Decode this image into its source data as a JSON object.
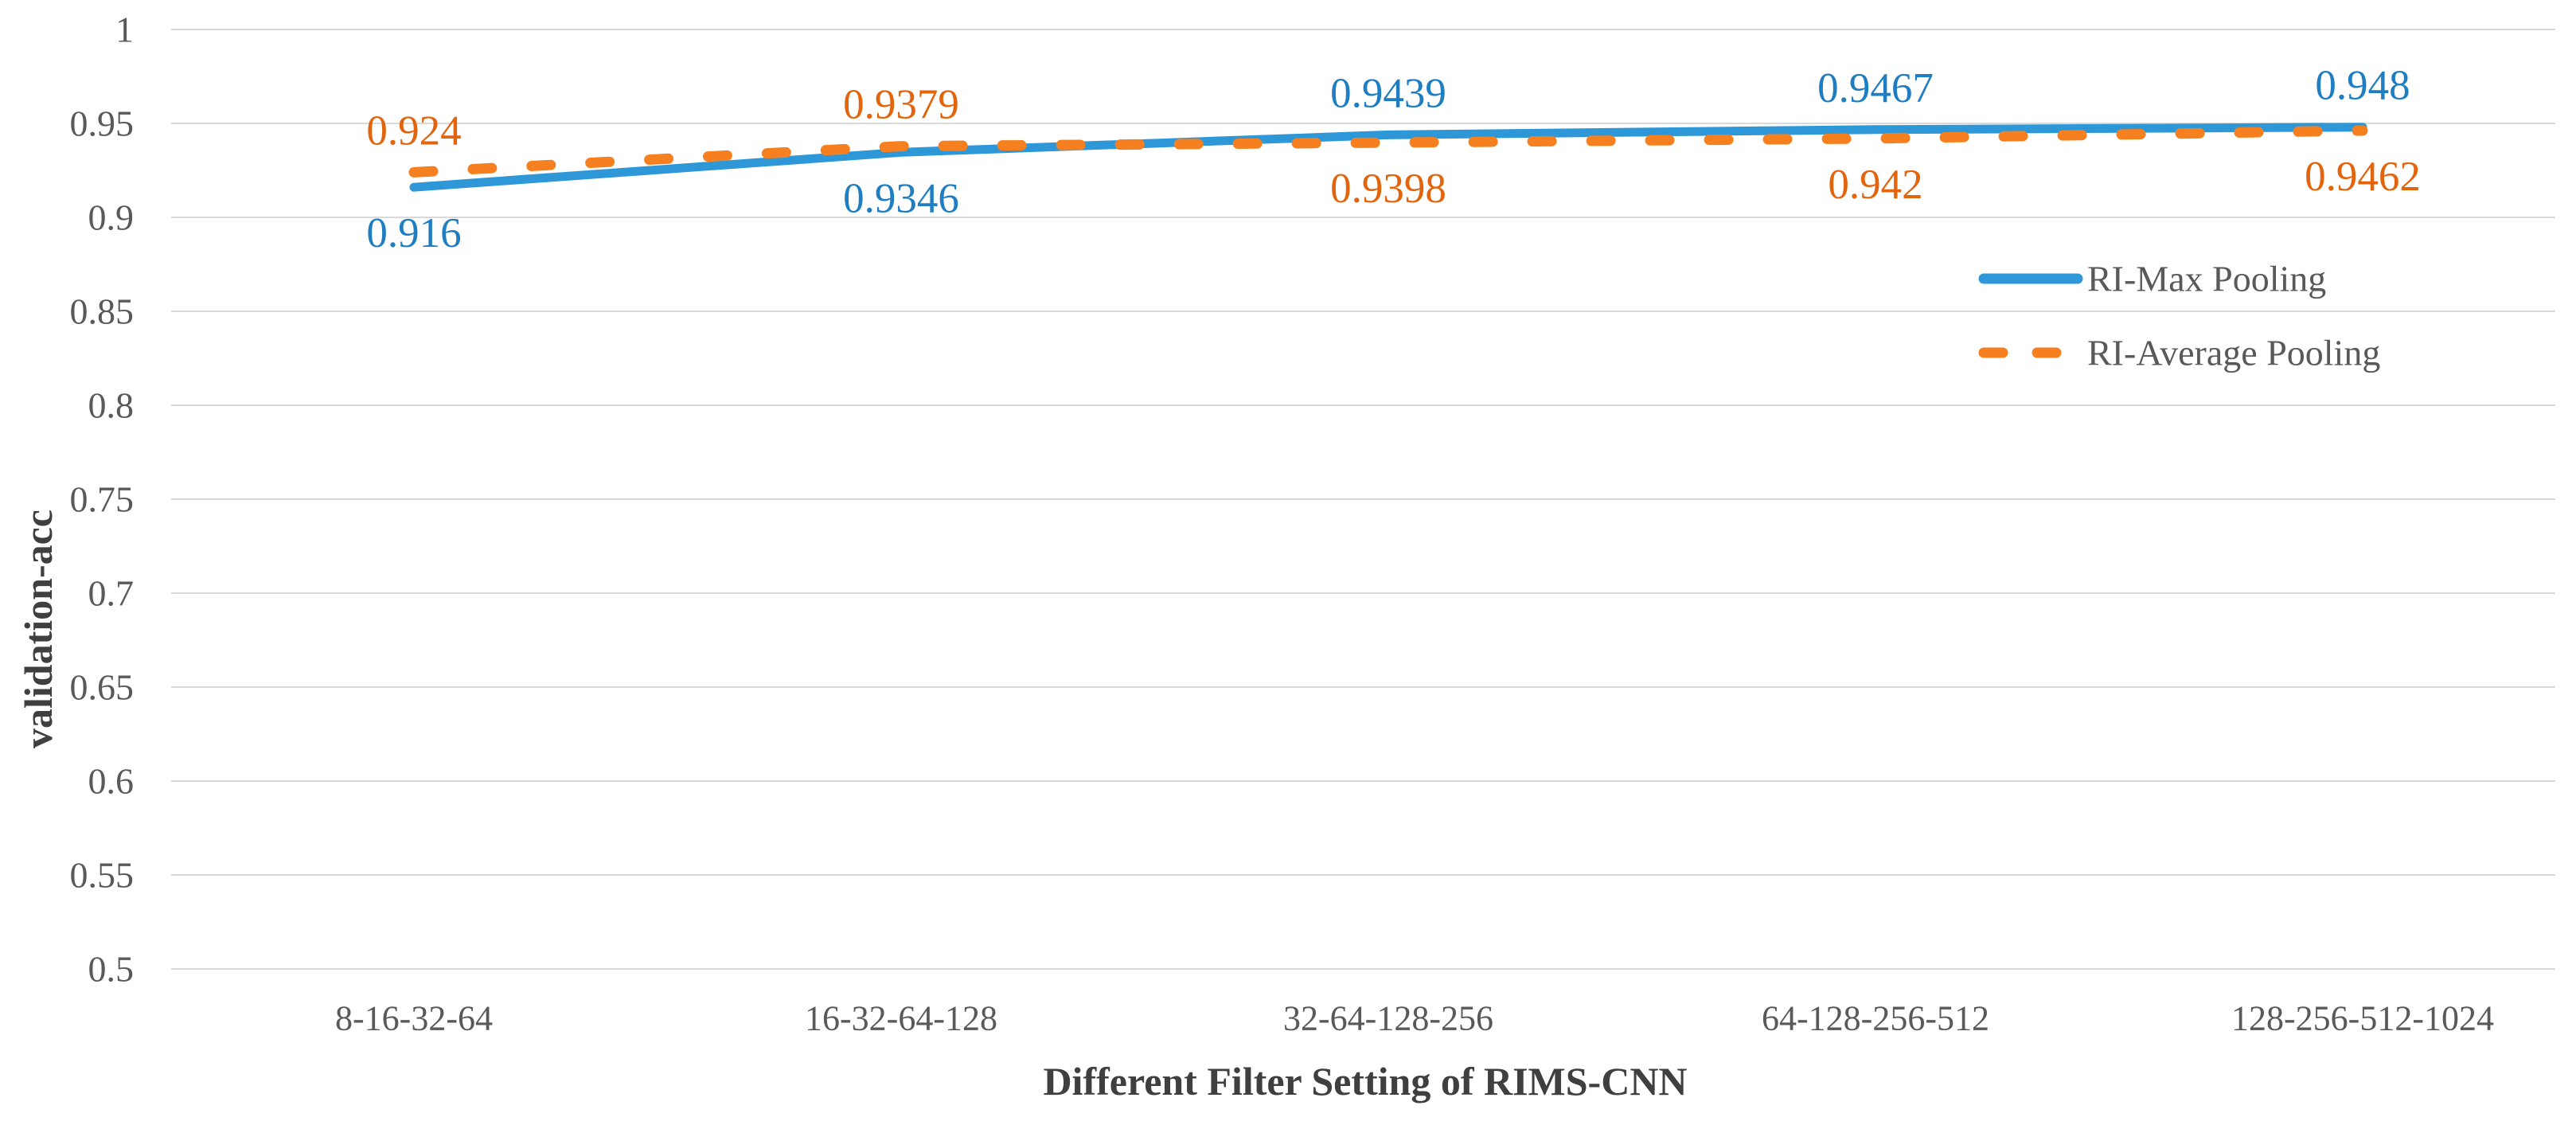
{
  "chart_data": {
    "type": "line",
    "title": "",
    "xlabel": "Different Filter Setting of RIMS-CNN",
    "ylabel": "validation-acc",
    "categories": [
      "8-16-32-64",
      "16-32-64-128",
      "32-64-128-256",
      "64-128-256-512",
      "128-256-512-1024"
    ],
    "series": [
      {
        "name": "RI-Max Pooling",
        "values": [
          0.916,
          0.9346,
          0.9439,
          0.9467,
          0.948
        ],
        "labels": [
          "0.916",
          "0.9346",
          "0.9439",
          "0.9467",
          "0.948"
        ],
        "label_positions": [
          "below",
          "below",
          "above",
          "above",
          "above"
        ],
        "line_style": "solid",
        "color": "#2E97D8",
        "label_color": "#1F7EC2"
      },
      {
        "name": "RI-Average Pooling",
        "values": [
          0.924,
          0.9379,
          0.9398,
          0.942,
          0.9462
        ],
        "labels": [
          "0.924",
          "0.9379",
          "0.9398",
          "0.942",
          "0.9462"
        ],
        "label_positions": [
          "above",
          "above",
          "below",
          "below",
          "below"
        ],
        "line_style": "dashed",
        "color": "#F6801F",
        "label_color": "#E2640D"
      }
    ],
    "ylim": [
      0.5,
      1.0
    ],
    "ytick_step": 0.05,
    "yticks": [
      {
        "value": 1.0,
        "label": "1"
      },
      {
        "value": 0.95,
        "label": "0.95"
      },
      {
        "value": 0.9,
        "label": "0.9"
      },
      {
        "value": 0.85,
        "label": "0.85"
      },
      {
        "value": 0.8,
        "label": "0.8"
      },
      {
        "value": 0.75,
        "label": "0.75"
      },
      {
        "value": 0.7,
        "label": "0.7"
      },
      {
        "value": 0.65,
        "label": "0.65"
      },
      {
        "value": 0.6,
        "label": "0.6"
      },
      {
        "value": 0.55,
        "label": "0.55"
      },
      {
        "value": 0.5,
        "label": "0.5"
      }
    ],
    "grid": true,
    "legend": {
      "entries": [
        "RI-Max Pooling",
        "RI-Average Pooling"
      ],
      "position": "inside-top-right"
    }
  },
  "colors": {
    "background": "#FFFFFF",
    "gridline": "#D9D9D9",
    "tick_text": "#595959",
    "axis_title_text": "#3F3F3F",
    "legend_text": "#595959",
    "series_blue": "#2E97D8",
    "series_orange": "#F6801F"
  }
}
